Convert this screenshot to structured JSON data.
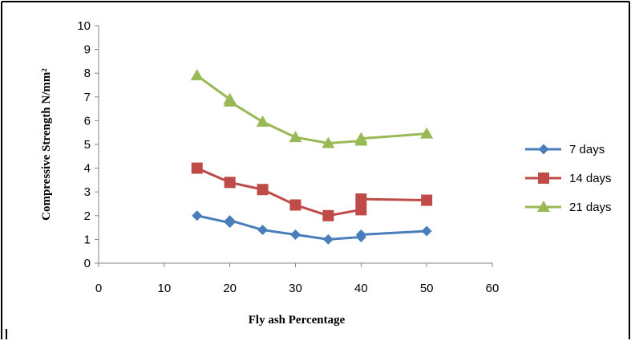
{
  "chart_data": {
    "type": "line",
    "title": "",
    "xlabel": "Fly ash Percentage",
    "ylabel": "Compressive Strength N/mm²",
    "xlim": [
      0,
      60
    ],
    "ylim": [
      0,
      10
    ],
    "x_ticks": [
      0,
      10,
      20,
      30,
      40,
      50,
      60
    ],
    "y_ticks": [
      0,
      1,
      2,
      3,
      4,
      5,
      6,
      7,
      8,
      9,
      10
    ],
    "grid": false,
    "legend_position": "right",
    "series": [
      {
        "name": "7 days",
        "color": "#4a7ebb",
        "marker": "diamond",
        "x": [
          15,
          20,
          20,
          25,
          30,
          35,
          40,
          40,
          50
        ],
        "y": [
          2.0,
          1.7,
          1.8,
          1.4,
          1.2,
          1.0,
          1.1,
          1.2,
          1.35
        ]
      },
      {
        "name": "14 days",
        "color": "#be4b48",
        "marker": "square",
        "x": [
          15,
          20,
          25,
          30,
          35,
          40,
          40,
          50
        ],
        "y": [
          4.0,
          3.4,
          3.1,
          2.45,
          2.0,
          2.25,
          2.7,
          2.65
        ]
      },
      {
        "name": "21 days",
        "color": "#98b954",
        "marker": "triangle",
        "x": [
          15,
          20,
          20,
          25,
          30,
          35,
          40,
          40,
          50
        ],
        "y": [
          7.9,
          6.9,
          6.8,
          5.95,
          5.3,
          5.05,
          5.15,
          5.25,
          5.45
        ]
      }
    ]
  }
}
